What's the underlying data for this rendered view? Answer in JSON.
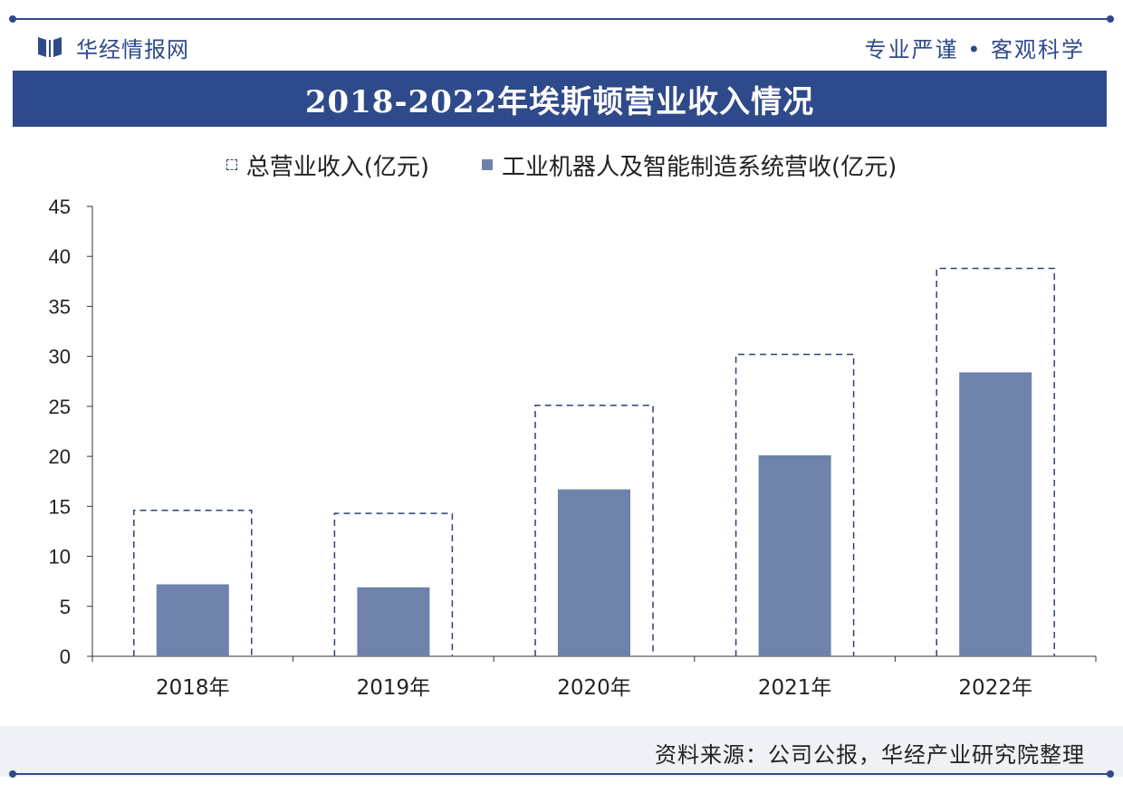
{
  "header": {
    "brand_name": "华经情报网",
    "motto": "专业严谨 • 客观科学",
    "logo_icon": "book-logo-icon"
  },
  "title": "2018-2022年埃斯顿营业收入情况",
  "colors": {
    "navy": "#2f4a8a",
    "bar": "#6e82ab",
    "dash": "#2f3f7a",
    "text": "#222222"
  },
  "chart_data": {
    "type": "bar",
    "categories": [
      "2018年",
      "2019年",
      "2020年",
      "2021年",
      "2022年"
    ],
    "series": [
      {
        "name": "总营业收入(亿元)",
        "values": [
          14.6,
          14.3,
          25.1,
          30.2,
          38.8
        ],
        "style": "dashed-outline"
      },
      {
        "name": "工业机器人及智能制造系统营收(亿元)",
        "values": [
          7.2,
          6.9,
          16.7,
          20.1,
          28.4
        ],
        "style": "filled"
      }
    ],
    "ylim": [
      0,
      45
    ],
    "yticks": [
      0,
      5,
      10,
      15,
      20,
      25,
      30,
      35,
      40,
      45
    ],
    "legend": "top",
    "grid": false
  },
  "footer": {
    "source": "资料来源：公司公报，华经产业研究院整理"
  }
}
